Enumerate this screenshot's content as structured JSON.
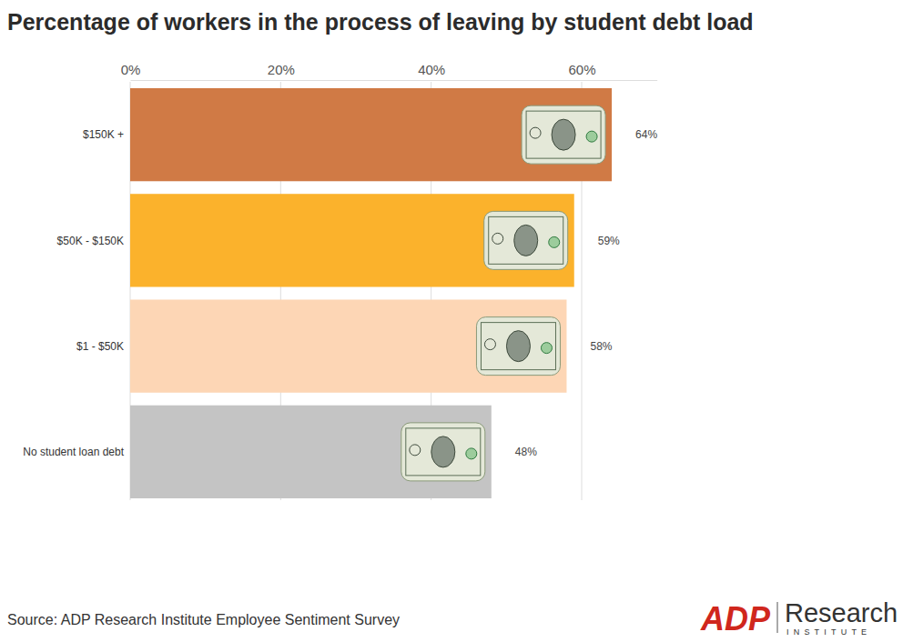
{
  "chart_data": {
    "type": "bar",
    "orientation": "horizontal",
    "title": "Percentage of workers in the process of leaving by student debt load",
    "categories": [
      "$150K +",
      "$50K - $150K",
      "$1 - $50K",
      "No student loan debt"
    ],
    "values": [
      64,
      59,
      58,
      48
    ],
    "value_labels": [
      "64%",
      "59%",
      "58%",
      "48%"
    ],
    "data_labels": true,
    "colors": [
      "#d07a45",
      "#fbb22c",
      "#fdd6b5",
      "#c4c4c4"
    ],
    "xlim": [
      0,
      70
    ],
    "xticks": [
      {
        "value": 0,
        "label": "0%"
      },
      {
        "value": 20,
        "label": "20%"
      },
      {
        "value": 40,
        "label": "40%"
      },
      {
        "value": 60,
        "label": "60%"
      }
    ],
    "grid": true,
    "source": "Source: ADP Research Institute Employee Sentiment Survey",
    "logo": {
      "brand": "ADP",
      "name": "Research",
      "sub": "INSTITUTE"
    }
  }
}
